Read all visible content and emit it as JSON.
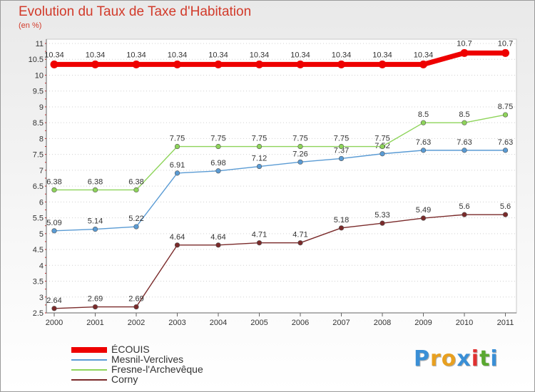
{
  "header": {
    "title": "Evolution du Taux de Taxe d'Habitation",
    "subtitle": "(en %)"
  },
  "chart_data": {
    "type": "line",
    "title": "Evolution du Taux de Taxe d'Habitation",
    "subtitle": "(en %)",
    "xlabel": "",
    "ylabel": "",
    "x": [
      "2000",
      "2001",
      "2002",
      "2003",
      "2004",
      "2005",
      "2006",
      "2007",
      "2008",
      "2009",
      "2010",
      "2011"
    ],
    "ylim": [
      2.5,
      11
    ],
    "yticks": [
      "2.5",
      "3",
      "3.5",
      "4",
      "4.5",
      "5",
      "5.5",
      "6",
      "6.5",
      "7",
      "7.5",
      "8",
      "8.5",
      "9",
      "9.5",
      "10",
      "10.5",
      "11"
    ],
    "grid": "dotted-horizontal",
    "legend_position": "bottom-left",
    "series": [
      {
        "name": "ÉCOUIS",
        "color": "#ee0000",
        "values": [
          10.34,
          10.34,
          10.34,
          10.34,
          10.34,
          10.34,
          10.34,
          10.34,
          10.34,
          10.34,
          10.7,
          10.7
        ],
        "labels": [
          "10.34",
          "10.34",
          "10.34",
          "10.34",
          "10.34",
          "10.34",
          "10.34",
          "10.34",
          "10.34",
          "10.34",
          "10.7",
          "10.7"
        ]
      },
      {
        "name": "Mesnil-Verclives",
        "color": "#5a9bd4",
        "values": [
          5.09,
          5.14,
          5.22,
          6.91,
          6.98,
          7.12,
          7.26,
          7.37,
          7.52,
          7.63,
          7.63,
          7.63
        ],
        "labels": [
          "5.09",
          "5.14",
          "5.22",
          "6.91",
          "6.98",
          "7.12",
          "7.26",
          "7.37",
          "7.52",
          "7.63",
          "7.63",
          "7.63"
        ]
      },
      {
        "name": "Fresne-l'Archevêque",
        "color": "#8ed45a",
        "values": [
          6.38,
          6.38,
          6.38,
          7.75,
          7.75,
          7.75,
          7.75,
          7.75,
          7.75,
          8.5,
          8.5,
          8.75
        ],
        "labels": [
          "6.38",
          "6.38",
          "6.38",
          "7.75",
          "7.75",
          "7.75",
          "7.75",
          "7.75",
          "7.75",
          "8.5",
          "8.5",
          "8.75"
        ]
      },
      {
        "name": "Corny",
        "color": "#7a2a2a",
        "values": [
          2.64,
          2.69,
          2.69,
          4.64,
          4.64,
          4.71,
          4.71,
          5.18,
          5.33,
          5.49,
          5.6,
          5.6
        ],
        "labels": [
          "2.64",
          "2.69",
          "2.69",
          "4.64",
          "4.64",
          "4.71",
          "4.71",
          "5.18",
          "5.33",
          "5.49",
          "5.6",
          "5.6"
        ]
      }
    ]
  },
  "logo": {
    "letters": [
      "P",
      "r",
      "o",
      "x",
      "i",
      "t",
      "i"
    ],
    "colors": [
      "#3a8fd6",
      "#e8a020",
      "#e8a020",
      "#3a8fd6",
      "#e03030",
      "#5aa830",
      "#3a8fd6"
    ]
  }
}
